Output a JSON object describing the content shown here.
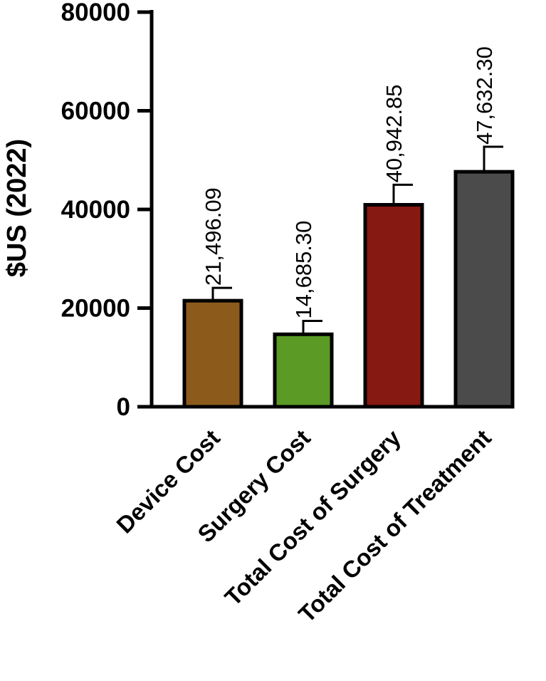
{
  "chart_data": {
    "type": "bar",
    "title": "",
    "xlabel": "",
    "ylabel": "$US (2022)",
    "ylim": [
      0,
      80000
    ],
    "yticks": [
      0,
      20000,
      40000,
      60000,
      80000
    ],
    "ytick_labels": [
      "0",
      "20000",
      "40000",
      "60000",
      "80000"
    ],
    "categories": [
      "Device Cost",
      "Surgery Cost",
      "Total Cost of Surgery",
      "Total Cost of Treatment"
    ],
    "values": [
      21496.09,
      14685.3,
      40942.85,
      47632.3
    ],
    "value_labels": [
      "21,496.09",
      "14,685.30",
      "40,942.85",
      "47,632.30"
    ],
    "error_upper": [
      24100,
      17400,
      45000,
      52700
    ],
    "colors": [
      "#8c5b1c",
      "#5a9a25",
      "#861911",
      "#4b4b4b"
    ],
    "grid": false,
    "legend": "none"
  }
}
